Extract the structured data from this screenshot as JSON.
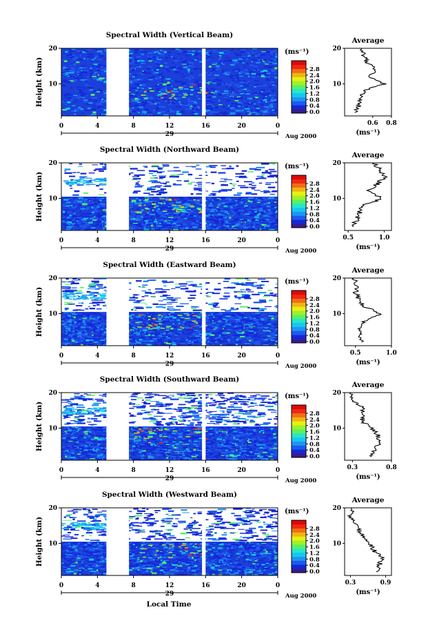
{
  "common": {
    "ylabel": "Height (km)",
    "y_ticks": [
      "20",
      "10"
    ],
    "x_ticks": [
      "0",
      "4",
      "8",
      "12",
      "16",
      "20",
      "0"
    ],
    "date_day": "29",
    "date_month": "Aug 2000",
    "colorbar_unit": "(ms⁻¹)",
    "colorbar_ticks": [
      "2.8",
      "2.4",
      "2.0",
      "1.6",
      "1.2",
      "0.8",
      "0.4",
      "0.0"
    ],
    "colorbar_colors": [
      "#3a1a8a",
      "#1428d8",
      "#1e5af0",
      "#1e96f0",
      "#14c8f0",
      "#28e6c8",
      "#5af064",
      "#a0f028",
      "#e6f014",
      "#f0b414",
      "#f06e14",
      "#f02814",
      "#dc0a0a"
    ],
    "average_title": "Average",
    "average_unit": "(ms⁻¹)",
    "xlabel": "Local Time",
    "data_gaps_local_time": [
      [
        5.0,
        7.5
      ],
      [
        15.6,
        16.0
      ]
    ],
    "heights_km": [
      2,
      4,
      6,
      8,
      10,
      12,
      14,
      16,
      18,
      20
    ]
  },
  "chart_data": [
    {
      "type": "heatmap",
      "title": "Spectral Width (Vertical Beam)",
      "x_range_hours": [
        0,
        24
      ],
      "y_range_km": [
        1,
        20
      ],
      "colorbar_range": [
        0.0,
        3.0
      ],
      "average": {
        "xlim": [
          0.3,
          0.8
        ],
        "x_ticks": [
          "0.6",
          "0.8"
        ],
        "y_ticks": [
          "20",
          "10"
        ],
        "heights_km": [
          2,
          4,
          6,
          8,
          10,
          12,
          14,
          16,
          18,
          20
        ],
        "values": [
          0.42,
          0.45,
          0.48,
          0.5,
          0.72,
          0.58,
          0.62,
          0.55,
          0.5,
          0.48
        ]
      }
    },
    {
      "type": "heatmap",
      "title": "Spectral Width (Northward Beam)",
      "x_range_hours": [
        0,
        24
      ],
      "y_range_km": [
        1,
        20
      ],
      "colorbar_range": [
        0.0,
        3.0
      ],
      "average": {
        "xlim": [
          0.45,
          1.1
        ],
        "x_ticks": [
          "0.5",
          "1.0"
        ],
        "y_ticks": [
          "20",
          "10"
        ],
        "heights_km": [
          2,
          4,
          6,
          8,
          10,
          12,
          14,
          16,
          18,
          20
        ],
        "values": [
          0.55,
          0.62,
          0.66,
          0.7,
          0.98,
          0.78,
          0.9,
          1.0,
          0.95,
          0.85
        ]
      }
    },
    {
      "type": "heatmap",
      "title": "Spectral Width (Eastward Beam)",
      "x_range_hours": [
        0,
        24
      ],
      "y_range_km": [
        1,
        20
      ],
      "colorbar_range": [
        0.0,
        3.0
      ],
      "average": {
        "xlim": [
          0.35,
          1.0
        ],
        "x_ticks": [
          "0.5",
          "1.0"
        ],
        "y_ticks": [
          "20",
          "10"
        ],
        "heights_km": [
          2,
          4,
          6,
          8,
          10,
          12,
          14,
          16,
          18,
          20
        ],
        "values": [
          0.6,
          0.55,
          0.58,
          0.62,
          0.85,
          0.62,
          0.55,
          0.5,
          0.52,
          0.48
        ]
      }
    },
    {
      "type": "heatmap",
      "title": "Spectral Width (Southward Beam)",
      "x_range_hours": [
        0,
        24
      ],
      "y_range_km": [
        1,
        20
      ],
      "colorbar_range": [
        0.0,
        3.0
      ],
      "average": {
        "xlim": [
          0.2,
          0.8
        ],
        "x_ticks": [
          "0.3",
          "0.8"
        ],
        "y_ticks": [
          "20",
          "10"
        ],
        "heights_km": [
          2,
          4,
          6,
          8,
          10,
          12,
          14,
          16,
          18,
          20
        ],
        "values": [
          0.55,
          0.58,
          0.65,
          0.62,
          0.55,
          0.42,
          0.45,
          0.42,
          0.3,
          0.28
        ]
      }
    },
    {
      "type": "heatmap",
      "title": "Spectral Width (Westward Beam)",
      "x_range_hours": [
        0,
        24
      ],
      "y_range_km": [
        1,
        20
      ],
      "colorbar_range": [
        0.0,
        3.0
      ],
      "average": {
        "xlim": [
          0.2,
          1.0
        ],
        "x_ticks": [
          "0.3",
          "0.9"
        ],
        "y_ticks": [
          "20",
          "10"
        ],
        "heights_km": [
          2,
          4,
          6,
          8,
          10,
          12,
          14,
          16,
          18,
          20
        ],
        "values": [
          0.75,
          0.8,
          0.85,
          0.7,
          0.62,
          0.5,
          0.45,
          0.35,
          0.3,
          0.32
        ]
      }
    }
  ]
}
